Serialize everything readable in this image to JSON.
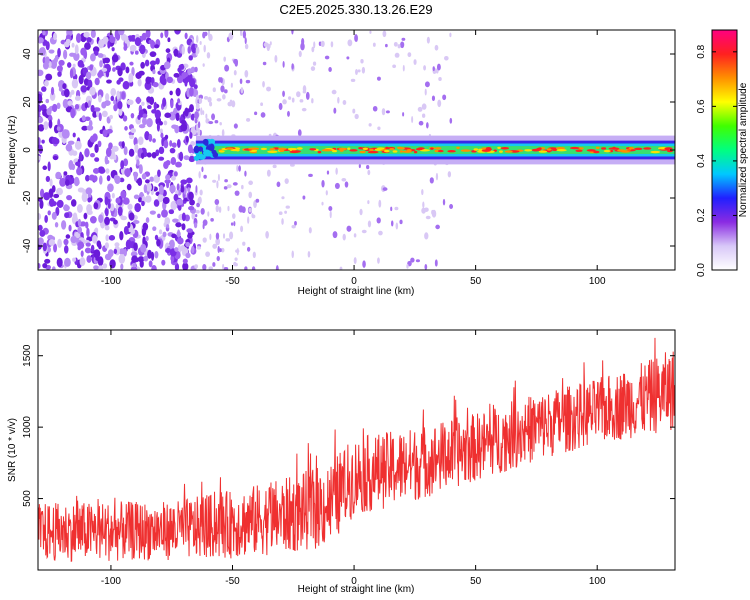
{
  "figure_title": "C2E5.2025.330.13.26.E29",
  "colors": {
    "snr_trace": "#ef3030",
    "faint": "#d9c8f5",
    "purple": "#7a2ee6",
    "axis": "#000000",
    "colormap": [
      "#ffffff",
      "#d8c8f8",
      "#8a2be2",
      "#2020ff",
      "#00c8ff",
      "#00ff80",
      "#40ff00",
      "#ffff00",
      "#ff9000",
      "#ff2020",
      "#ff0080"
    ]
  },
  "chart_data": [
    {
      "type": "heatmap",
      "id": "spectrogram",
      "title": "C2E5.2025.330.13.26.E29",
      "xlabel": "Height of straight line (km)",
      "ylabel": "Frequency (Hz)",
      "xlim": [
        -130,
        132
      ],
      "ylim": [
        -50,
        50
      ],
      "xticks": [
        -100,
        -50,
        0,
        50,
        100
      ],
      "yticks": [
        -40,
        -20,
        0,
        20,
        40
      ],
      "xticklabels": [
        "-100",
        "-50",
        "0",
        "50",
        "100"
      ],
      "yticklabels": [
        "-40",
        "-20",
        "0",
        "20",
        "40"
      ],
      "signal_band": {
        "x_start": -65,
        "x_end": 132,
        "center_hz": 0,
        "half_width_hz": 3
      },
      "noise_speckle_dense_range_km": [
        -130,
        -65
      ],
      "noise_speckle_sparse_range_km": [
        -65,
        0
      ],
      "colorbar": {
        "label": "Normalized spectral amplitude",
        "range": [
          0,
          0.88
        ],
        "ticks": [
          0.0,
          0.2,
          0.4,
          0.6,
          0.8
        ],
        "ticklabels": [
          "0.0",
          "0.2",
          "0.4",
          "0.6",
          "0.8"
        ]
      }
    },
    {
      "type": "line",
      "id": "snr",
      "xlabel": "Height of straight line (km)",
      "ylabel": "SNR (10 * v/v)",
      "xlim": [
        -130,
        132
      ],
      "ylim": [
        0,
        1680
      ],
      "xticks": [
        -100,
        -50,
        0,
        50,
        100
      ],
      "yticks": [
        500,
        1000,
        1500
      ],
      "xticklabels": [
        "-100",
        "-50",
        "0",
        "50",
        "100"
      ],
      "yticklabels": [
        "500",
        "1000",
        "1500"
      ],
      "series": [
        {
          "name": "SNR",
          "x": [
            -130,
            -100,
            -75,
            -50,
            -25,
            -10,
            0,
            25,
            50,
            75,
            100,
            120,
            132
          ],
          "lower": [
            60,
            60,
            70,
            80,
            120,
            160,
            380,
            480,
            620,
            760,
            880,
            940,
            980
          ],
          "upper": [
            470,
            480,
            480,
            560,
            660,
            760,
            930,
            1000,
            1100,
            1240,
            1340,
            1460,
            1560
          ]
        }
      ]
    }
  ]
}
